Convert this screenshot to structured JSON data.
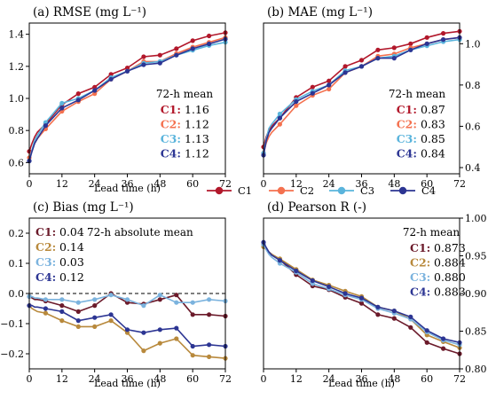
{
  "figure": {
    "legend": {
      "entries": [
        {
          "label": "C1",
          "color": "#b2182b"
        },
        {
          "label": "C2",
          "color": "#f4714f"
        },
        {
          "label": "C3",
          "color": "#5ab4dc"
        },
        {
          "label": "C4",
          "color": "#2c3593"
        }
      ]
    }
  },
  "chart_data": [
    {
      "type": "line",
      "title": "(a) RMSE (mg L⁻¹)",
      "xlabel": "Lead time (h)",
      "ylabel": "",
      "xlim": [
        0,
        72
      ],
      "ylim": [
        0.53,
        1.47
      ],
      "xticks": [
        0,
        12,
        24,
        36,
        48,
        60,
        72
      ],
      "yticks": [
        0.6,
        0.8,
        1.0,
        1.2,
        1.4
      ],
      "ytick_labels": [
        "0.6",
        "0.8",
        "1.0",
        "1.2",
        "1.4"
      ],
      "yaxis_side": "left",
      "grid": false,
      "annotation": {
        "header": "72-h mean",
        "rows": [
          {
            "label": "C1:",
            "value": "1.16",
            "color": "#b2182b"
          },
          {
            "label": "C2:",
            "value": "1.12",
            "color": "#f4714f"
          },
          {
            "label": "C3:",
            "value": "1.13",
            "color": "#5ab4dc"
          },
          {
            "label": "C4:",
            "value": "1.12",
            "color": "#2c3593"
          }
        ]
      },
      "series": [
        {
          "name": "C1",
          "color": "#b2182b",
          "x": [
            0,
            1,
            2,
            3,
            6,
            12,
            18,
            24,
            30,
            36,
            42,
            48,
            54,
            60,
            66,
            72
          ],
          "y": [
            0.67,
            0.72,
            0.76,
            0.79,
            0.84,
            0.96,
            1.03,
            1.07,
            1.15,
            1.19,
            1.26,
            1.27,
            1.31,
            1.36,
            1.39,
            1.41
          ]
        },
        {
          "name": "C2",
          "color": "#f4714f",
          "x": [
            0,
            1,
            2,
            3,
            6,
            12,
            18,
            24,
            30,
            36,
            42,
            48,
            54,
            60,
            66,
            72
          ],
          "y": [
            0.63,
            0.68,
            0.72,
            0.75,
            0.81,
            0.92,
            0.98,
            1.03,
            1.12,
            1.17,
            1.23,
            1.23,
            1.28,
            1.32,
            1.35,
            1.38
          ]
        },
        {
          "name": "C3",
          "color": "#5ab4dc",
          "x": [
            0,
            1,
            2,
            3,
            6,
            12,
            18,
            24,
            30,
            36,
            42,
            48,
            54,
            60,
            66,
            72
          ],
          "y": [
            0.61,
            0.68,
            0.74,
            0.77,
            0.85,
            0.97,
            1.0,
            1.05,
            1.13,
            1.17,
            1.22,
            1.23,
            1.27,
            1.3,
            1.33,
            1.35
          ]
        },
        {
          "name": "C4",
          "color": "#2c3593",
          "x": [
            0,
            1,
            2,
            3,
            6,
            12,
            18,
            24,
            30,
            36,
            42,
            48,
            54,
            60,
            66,
            72
          ],
          "y": [
            0.61,
            0.67,
            0.72,
            0.75,
            0.83,
            0.94,
            0.99,
            1.05,
            1.12,
            1.17,
            1.21,
            1.22,
            1.27,
            1.31,
            1.34,
            1.37
          ]
        }
      ]
    },
    {
      "type": "line",
      "title": "(b) MAE (mg L⁻¹)",
      "xlabel": "",
      "ylabel": "",
      "xlim": [
        0,
        72
      ],
      "ylim": [
        0.37,
        1.1
      ],
      "xticks": [
        0,
        12,
        24,
        36,
        48,
        60,
        72
      ],
      "yticks": [
        0.4,
        0.6,
        0.8,
        1.0
      ],
      "ytick_labels": [
        "0.4",
        "0.6",
        "0.8",
        "1.0"
      ],
      "yaxis_side": "right",
      "grid": false,
      "annotation": {
        "header": "72-h mean",
        "rows": [
          {
            "label": "C1:",
            "value": "0.87",
            "color": "#b2182b"
          },
          {
            "label": "C2:",
            "value": "0.83",
            "color": "#f4714f"
          },
          {
            "label": "C3:",
            "value": "0.85",
            "color": "#5ab4dc"
          },
          {
            "label": "C4:",
            "value": "0.84",
            "color": "#2c3593"
          }
        ]
      },
      "series": [
        {
          "name": "C1",
          "color": "#b2182b",
          "x": [
            0,
            1,
            2,
            3,
            6,
            12,
            18,
            24,
            30,
            36,
            42,
            48,
            54,
            60,
            66,
            72
          ],
          "y": [
            0.5,
            0.55,
            0.58,
            0.6,
            0.64,
            0.74,
            0.79,
            0.82,
            0.89,
            0.92,
            0.97,
            0.98,
            1.0,
            1.03,
            1.05,
            1.06
          ]
        },
        {
          "name": "C2",
          "color": "#f4714f",
          "x": [
            0,
            1,
            2,
            3,
            6,
            12,
            18,
            24,
            30,
            36,
            42,
            48,
            54,
            60,
            66,
            72
          ],
          "y": [
            0.47,
            0.52,
            0.55,
            0.57,
            0.61,
            0.7,
            0.75,
            0.78,
            0.86,
            0.89,
            0.94,
            0.95,
            0.98,
            1.0,
            1.02,
            1.03
          ]
        },
        {
          "name": "C3",
          "color": "#5ab4dc",
          "x": [
            0,
            1,
            2,
            3,
            6,
            12,
            18,
            24,
            30,
            36,
            42,
            48,
            54,
            60,
            66,
            72
          ],
          "y": [
            0.47,
            0.54,
            0.59,
            0.61,
            0.66,
            0.73,
            0.77,
            0.8,
            0.87,
            0.89,
            0.93,
            0.94,
            0.97,
            0.99,
            1.01,
            1.02
          ]
        },
        {
          "name": "C4",
          "color": "#2c3593",
          "x": [
            0,
            1,
            2,
            3,
            6,
            12,
            18,
            24,
            30,
            36,
            42,
            48,
            54,
            60,
            66,
            72
          ],
          "y": [
            0.46,
            0.53,
            0.57,
            0.59,
            0.64,
            0.72,
            0.76,
            0.8,
            0.86,
            0.89,
            0.93,
            0.93,
            0.97,
            1.0,
            1.02,
            1.03
          ]
        }
      ]
    },
    {
      "type": "line",
      "title": "(c) Bias (mg L⁻¹)",
      "xlabel": "Lead time (h)",
      "ylabel": "",
      "xlim": [
        0,
        72
      ],
      "ylim": [
        -0.25,
        0.25
      ],
      "xticks": [
        0,
        12,
        24,
        36,
        48,
        60,
        72
      ],
      "yticks": [
        -0.2,
        -0.1,
        0.0,
        0.1,
        0.2
      ],
      "ytick_labels": [
        "−0.2",
        "−0.1",
        "0.0",
        "0.1",
        "0.2"
      ],
      "yaxis_side": "left",
      "reference_line": 0,
      "grid": false,
      "annotation": {
        "header": "72-h absolute mean",
        "rows": [
          {
            "label": "C1:",
            "value": "0.04",
            "color": "#6b1a2a"
          },
          {
            "label": "C2:",
            "value": "0.14",
            "color": "#b8893c"
          },
          {
            "label": "C3:",
            "value": "0.03",
            "color": "#7bb3de"
          },
          {
            "label": "C4:",
            "value": "0.12",
            "color": "#2c3593"
          }
        ]
      },
      "series": [
        {
          "name": "C1",
          "color": "#6b1a2a",
          "x": [
            0,
            1,
            2,
            3,
            6,
            12,
            18,
            24,
            30,
            36,
            42,
            48,
            54,
            60,
            66,
            72
          ],
          "y": [
            -0.01,
            -0.015,
            -0.02,
            -0.02,
            -0.025,
            -0.04,
            -0.06,
            -0.04,
            0.0,
            -0.03,
            -0.035,
            -0.02,
            -0.005,
            -0.07,
            -0.07,
            -0.075
          ]
        },
        {
          "name": "C2",
          "color": "#b8893c",
          "x": [
            0,
            1,
            2,
            3,
            6,
            12,
            18,
            24,
            30,
            36,
            42,
            48,
            54,
            60,
            66,
            72
          ],
          "y": [
            -0.04,
            -0.05,
            -0.055,
            -0.06,
            -0.065,
            -0.09,
            -0.11,
            -0.11,
            -0.09,
            -0.13,
            -0.19,
            -0.165,
            -0.15,
            -0.205,
            -0.21,
            -0.215
          ]
        },
        {
          "name": "C3",
          "color": "#7bb3de",
          "x": [
            0,
            1,
            2,
            3,
            6,
            12,
            18,
            24,
            30,
            36,
            42,
            48,
            54,
            60,
            66,
            72
          ],
          "y": [
            -0.01,
            -0.01,
            -0.015,
            -0.015,
            -0.02,
            -0.02,
            -0.03,
            -0.02,
            -0.005,
            -0.02,
            -0.04,
            -0.005,
            -0.03,
            -0.03,
            -0.02,
            -0.025
          ]
        },
        {
          "name": "C4",
          "color": "#2c3593",
          "x": [
            0,
            1,
            2,
            3,
            6,
            12,
            18,
            24,
            30,
            36,
            42,
            48,
            54,
            60,
            66,
            72
          ],
          "y": [
            -0.04,
            -0.04,
            -0.045,
            -0.045,
            -0.05,
            -0.06,
            -0.09,
            -0.08,
            -0.07,
            -0.12,
            -0.13,
            -0.12,
            -0.115,
            -0.175,
            -0.17,
            -0.175
          ]
        }
      ]
    },
    {
      "type": "line",
      "title": "(d) Pearson R (-)",
      "xlabel": "Lead time (h)",
      "ylabel": "",
      "xlim": [
        0,
        72
      ],
      "ylim": [
        0.8,
        1.0
      ],
      "xticks": [
        0,
        12,
        24,
        36,
        48,
        60,
        72
      ],
      "yticks": [
        0.8,
        0.85,
        0.9,
        0.95,
        1.0
      ],
      "ytick_labels": [
        "0.80",
        "0.85",
        "0.90",
        "0.95",
        "1.00"
      ],
      "yaxis_side": "right",
      "grid": false,
      "annotation": {
        "header": "72-h mean",
        "rows": [
          {
            "label": "C1:",
            "value": "0.873",
            "color": "#6b1a2a"
          },
          {
            "label": "C2:",
            "value": "0.884",
            "color": "#b8893c"
          },
          {
            "label": "C3:",
            "value": "0.880",
            "color": "#7bb3de"
          },
          {
            "label": "C4:",
            "value": "0.883",
            "color": "#2c3593"
          }
        ]
      },
      "series": [
        {
          "name": "C1",
          "color": "#6b1a2a",
          "x": [
            0,
            1,
            2,
            3,
            6,
            12,
            18,
            24,
            30,
            36,
            42,
            48,
            54,
            60,
            66,
            72
          ],
          "y": [
            0.965,
            0.96,
            0.955,
            0.952,
            0.945,
            0.925,
            0.91,
            0.905,
            0.895,
            0.887,
            0.872,
            0.867,
            0.855,
            0.835,
            0.827,
            0.82
          ]
        },
        {
          "name": "C2",
          "color": "#b8893c",
          "x": [
            0,
            1,
            2,
            3,
            6,
            12,
            18,
            24,
            30,
            36,
            42,
            48,
            54,
            60,
            66,
            72
          ],
          "y": [
            0.962,
            0.958,
            0.955,
            0.952,
            0.946,
            0.932,
            0.918,
            0.911,
            0.903,
            0.896,
            0.882,
            0.877,
            0.866,
            0.845,
            0.836,
            0.828
          ]
        },
        {
          "name": "C3",
          "color": "#7bb3de",
          "x": [
            0,
            1,
            2,
            3,
            6,
            12,
            18,
            24,
            30,
            36,
            42,
            48,
            54,
            60,
            66,
            72
          ],
          "y": [
            0.965,
            0.958,
            0.952,
            0.948,
            0.94,
            0.928,
            0.913,
            0.906,
            0.898,
            0.892,
            0.88,
            0.874,
            0.866,
            0.849,
            0.838,
            0.832
          ]
        },
        {
          "name": "C4",
          "color": "#2c3593",
          "x": [
            0,
            1,
            2,
            3,
            6,
            12,
            18,
            24,
            30,
            36,
            42,
            48,
            54,
            60,
            66,
            72
          ],
          "y": [
            0.968,
            0.961,
            0.955,
            0.951,
            0.944,
            0.93,
            0.917,
            0.909,
            0.9,
            0.894,
            0.882,
            0.877,
            0.869,
            0.851,
            0.84,
            0.835
          ]
        }
      ]
    }
  ]
}
